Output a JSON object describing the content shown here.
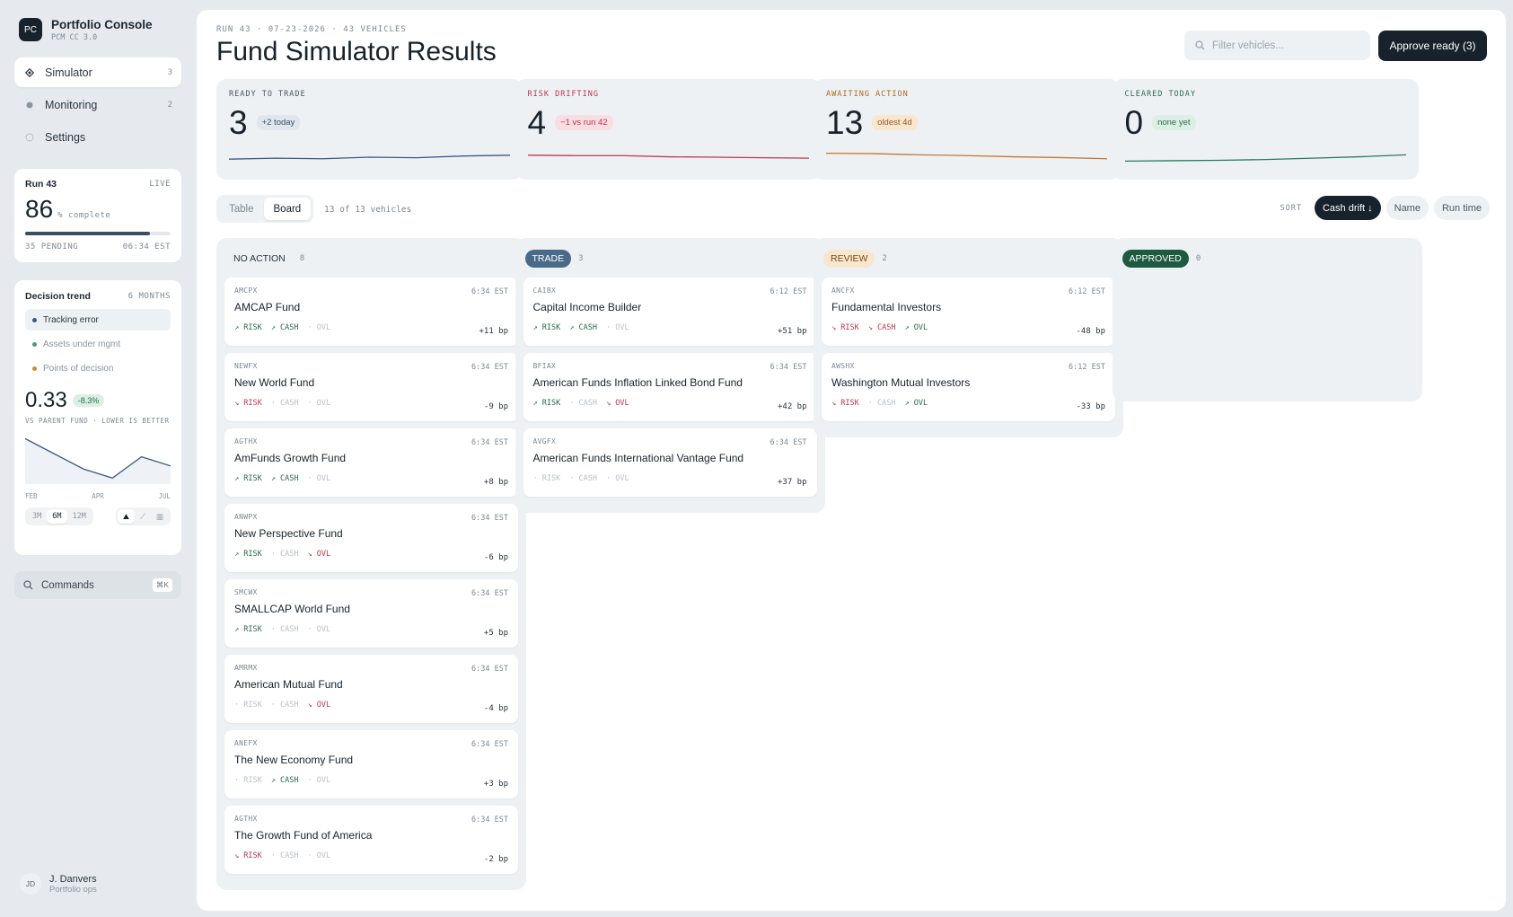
{
  "app": {
    "logo": "PC",
    "name": "Portfolio Console",
    "version": "PCM CC 3.0"
  },
  "nav": [
    {
      "label": "Simulator",
      "count": "3",
      "icon": "diamond-icon",
      "active": true
    },
    {
      "label": "Monitoring",
      "count": "2",
      "icon": "dot-icon",
      "active": false
    },
    {
      "label": "Settings",
      "count": "",
      "icon": "circle-icon",
      "active": false
    }
  ],
  "run": {
    "title": "Run 43",
    "status": "LIVE",
    "percent": "86",
    "percent_unit": "% complete",
    "progress": 0.86,
    "pending": "35 PENDING",
    "time": "06:34 EST"
  },
  "trend": {
    "title": "Decision trend",
    "range": "6 MONTHS",
    "legend": [
      {
        "label": "Tracking error",
        "color": "#3a5a80"
      },
      {
        "label": "Assets under mgmt",
        "color": "#4a9a7a"
      },
      {
        "label": "Points of decision",
        "color": "#d08a3a"
      }
    ],
    "value": "0.33",
    "change": "-8.3%",
    "caption": "VS PARENT FUND · LOWER IS BETTER",
    "months": [
      "FEB",
      "APR",
      "JUL"
    ],
    "series": [
      0.42,
      0.37,
      0.32,
      0.29,
      0.36,
      0.33
    ],
    "periods": [
      "3M",
      "6M",
      "12M"
    ],
    "active_period": "6M"
  },
  "commands": {
    "label": "Commands",
    "shortcut": "⌘K"
  },
  "user": {
    "initials": "JD",
    "name": "J. Danvers",
    "role": "Portfolio ops"
  },
  "header": {
    "crumb": "RUN 43 · 07-23-2026 · 43 VEHICLES",
    "title": "Fund Simulator Results",
    "search_placeholder": "Filter vehicles...",
    "approve": "Approve ready (3)"
  },
  "kpis": [
    {
      "label": "READY TO TRADE",
      "value": "3",
      "badge": "+2 today",
      "label_color": "#4a5560",
      "badge_bg": "#dfe6ee",
      "badge_color": "#3a4d62",
      "line_color": "#3a5a80",
      "trend": [
        0.4,
        0.45,
        0.42,
        0.5,
        0.47,
        0.56,
        0.6
      ]
    },
    {
      "label": "RISK DRIFTING",
      "value": "4",
      "badge": "−1 vs run 42",
      "label_color": "#b8374d",
      "badge_bg": "#f8dde2",
      "badge_color": "#b8374d",
      "line_color": "#c03a50",
      "trend": [
        0.6,
        0.58,
        0.58,
        0.52,
        0.5,
        0.47,
        0.45
      ]
    },
    {
      "label": "AWAITING ACTION",
      "value": "13",
      "badge": "oldest 4d",
      "label_color": "#b0671d",
      "badge_bg": "#f8e6cf",
      "badge_color": "#9a5a18",
      "line_color": "#c07a30",
      "trend": [
        0.7,
        0.68,
        0.62,
        0.58,
        0.52,
        0.48,
        0.42
      ]
    },
    {
      "label": "CLEARED TODAY",
      "value": "0",
      "badge": "none yet",
      "label_color": "#2a6a4c",
      "badge_bg": "#dcefe4",
      "badge_color": "#2a6a4c",
      "line_color": "#2a7a5c",
      "trend": [
        0.3,
        0.32,
        0.34,
        0.38,
        0.45,
        0.52,
        0.62
      ]
    }
  ],
  "view": {
    "tabs": [
      "Table",
      "Board"
    ],
    "active": "Board",
    "count": "13 of 13 vehicles"
  },
  "sort": {
    "label": "SORT",
    "options": [
      "Cash drift ↓",
      "Name",
      "Run time"
    ],
    "active": "Cash drift ↓"
  },
  "columns": [
    {
      "name": "NO ACTION",
      "count": "8",
      "pill_bg": "transparent",
      "pill_color": "#2a3540",
      "cards": [
        {
          "ticker": "AMCPX",
          "time": "6:34 EST",
          "name": "AMCAP Fund",
          "risk": "up",
          "cash": "up",
          "ovl": "none",
          "bp": "+11 bp"
        },
        {
          "ticker": "NEWFX",
          "time": "6:34 EST",
          "name": "New World Fund",
          "risk": "down",
          "cash": "none",
          "ovl": "none",
          "bp": "-9 bp"
        },
        {
          "ticker": "AGTHX",
          "time": "6:34 EST",
          "name": "AmFunds Growth Fund",
          "risk": "up",
          "cash": "up",
          "ovl": "none",
          "bp": "+8 bp"
        },
        {
          "ticker": "ANWPX",
          "time": "6:34 EST",
          "name": "New Perspective Fund",
          "risk": "up",
          "cash": "none",
          "ovl": "down",
          "bp": "-6 bp"
        },
        {
          "ticker": "SMCWX",
          "time": "6:34 EST",
          "name": "SMALLCAP World Fund",
          "risk": "up",
          "cash": "none",
          "ovl": "none",
          "bp": "+5 bp"
        },
        {
          "ticker": "AMRMX",
          "time": "6:34 EST",
          "name": "American Mutual Fund",
          "risk": "none",
          "cash": "none",
          "ovl": "down",
          "bp": "-4 bp"
        },
        {
          "ticker": "ANEFX",
          "time": "6:34 EST",
          "name": "The New Economy Fund",
          "risk": "none",
          "cash": "up",
          "ovl": "none",
          "bp": "+3 bp"
        },
        {
          "ticker": "AGTHX",
          "time": "6:34 EST",
          "name": "The Growth Fund of America",
          "risk": "down",
          "cash": "none",
          "ovl": "none",
          "bp": "-2 bp"
        }
      ]
    },
    {
      "name": "TRADE",
      "count": "3",
      "pill_bg": "#4a6a8a",
      "pill_color": "#ffffff",
      "cards": [
        {
          "ticker": "CAIBX",
          "time": "6:12 EST",
          "name": "Capital Income Builder",
          "risk": "up",
          "cash": "up",
          "ovl": "none",
          "bp": "+51 bp"
        },
        {
          "ticker": "BFIAX",
          "time": "6:34 EST",
          "name": "American Funds Inflation Linked Bond Fund",
          "risk": "up",
          "cash": "none",
          "ovl": "down",
          "bp": "+42 bp"
        },
        {
          "ticker": "AVGFX",
          "time": "6:34 EST",
          "name": "American Funds International Vantage Fund",
          "risk": "none",
          "cash": "none",
          "ovl": "none",
          "bp": "+37 bp"
        }
      ]
    },
    {
      "name": "REVIEW",
      "count": "2",
      "pill_bg": "#f8e6cf",
      "pill_color": "#7a4a12",
      "cards": [
        {
          "ticker": "ANCFX",
          "time": "6:12 EST",
          "name": "Fundamental Investors",
          "risk": "down",
          "cash": "down",
          "ovl": "up",
          "bp": "-48 bp"
        },
        {
          "ticker": "AWSHX",
          "time": "6:12 EST",
          "name": "Washington Mutual Investors",
          "risk": "down",
          "cash": "none",
          "ovl": "up",
          "bp": "-33 bp"
        }
      ]
    },
    {
      "name": "APPROVED",
      "count": "0",
      "pill_bg": "#1e5a40",
      "pill_color": "#ffffff",
      "cards": []
    }
  ],
  "signal_labels": {
    "risk": "RISK",
    "cash": "CASH",
    "ovl": "OVL"
  }
}
